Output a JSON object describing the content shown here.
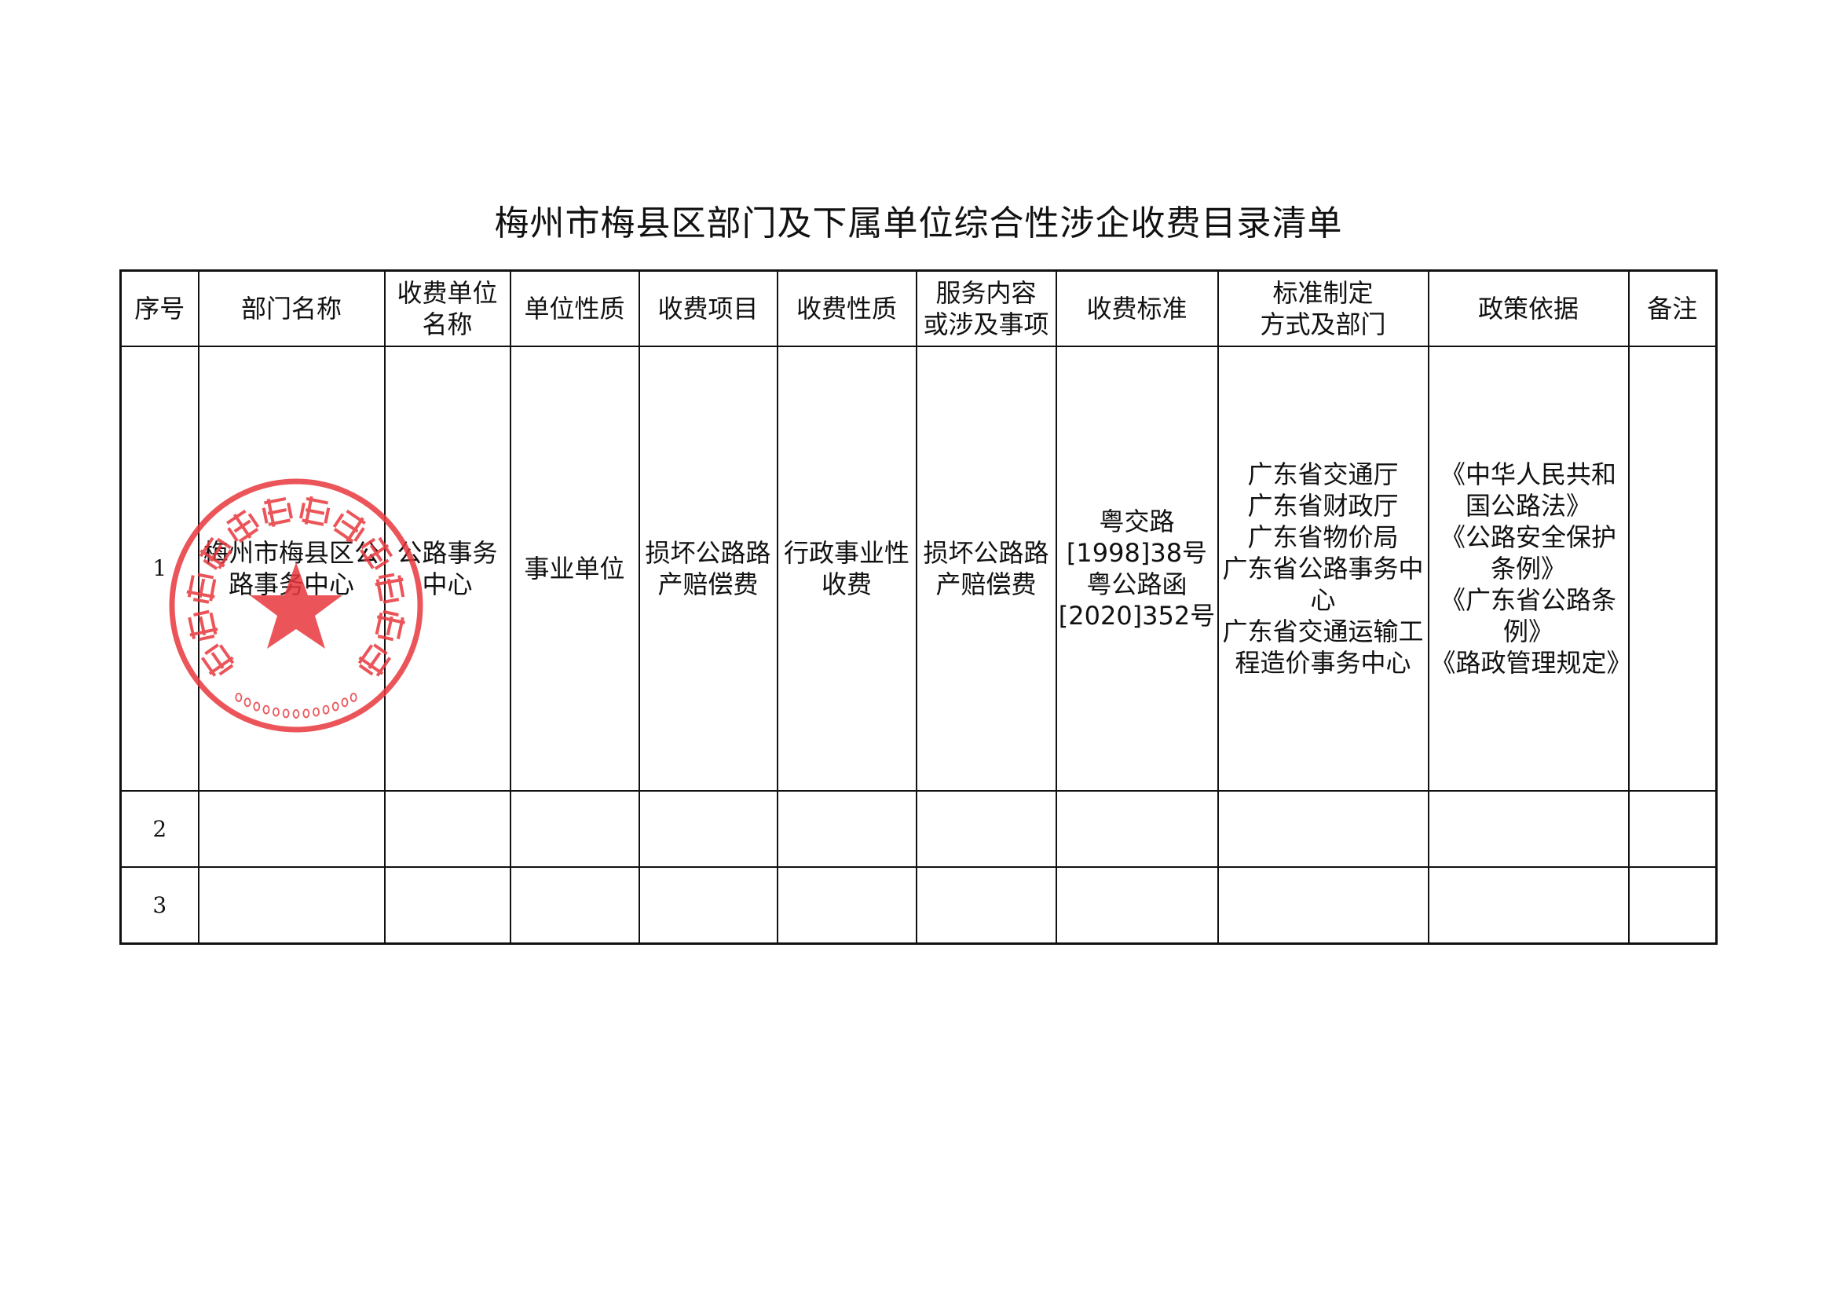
{
  "title": "梅州市梅县区部门及下属单位综合性涉企收费目录清单",
  "columns": [
    "序号",
    "部门名称",
    "收费单位\n名称",
    "单位性质",
    "收费项目",
    "收费性质",
    "服务内容\n或涉及事项",
    "收费标准",
    "标准制定\n方式及部门",
    "政策依据",
    "备注"
  ],
  "rows": [
    {
      "seq": "1",
      "dept": "梅州市梅县区公路事务中心",
      "unit": "公路事务中心",
      "nature": "事业单位",
      "item": "损坏公路路产赔偿费",
      "fee_nature": "行政事业性收费",
      "service": "损坏公路路产赔偿费",
      "standard": "粤交路\n[1998]38号\n粤公路函\n[2020]352号",
      "maker": "广东省交通厅\n广东省财政厅\n广东省物价局\n广东省公路事务中心\n广东省交通运输工程造价事务中心",
      "policy": "《中华人民共和国公路法》\n《公路安全保护条例》\n《广东省公路条例》\n《路政管理规定》",
      "remark": ""
    },
    {
      "seq": "2",
      "dept": "",
      "unit": "",
      "nature": "",
      "item": "",
      "fee_nature": "",
      "service": "",
      "standard": "",
      "maker": "",
      "policy": "",
      "remark": ""
    },
    {
      "seq": "3",
      "dept": "",
      "unit": "",
      "nature": "",
      "item": "",
      "fee_nature": "",
      "service": "",
      "standard": "",
      "maker": "",
      "policy": "",
      "remark": ""
    }
  ],
  "stamp": {
    "text": "梅州市梅县区公路事务中心",
    "number": "4414210080595",
    "color": "#e8383d"
  }
}
